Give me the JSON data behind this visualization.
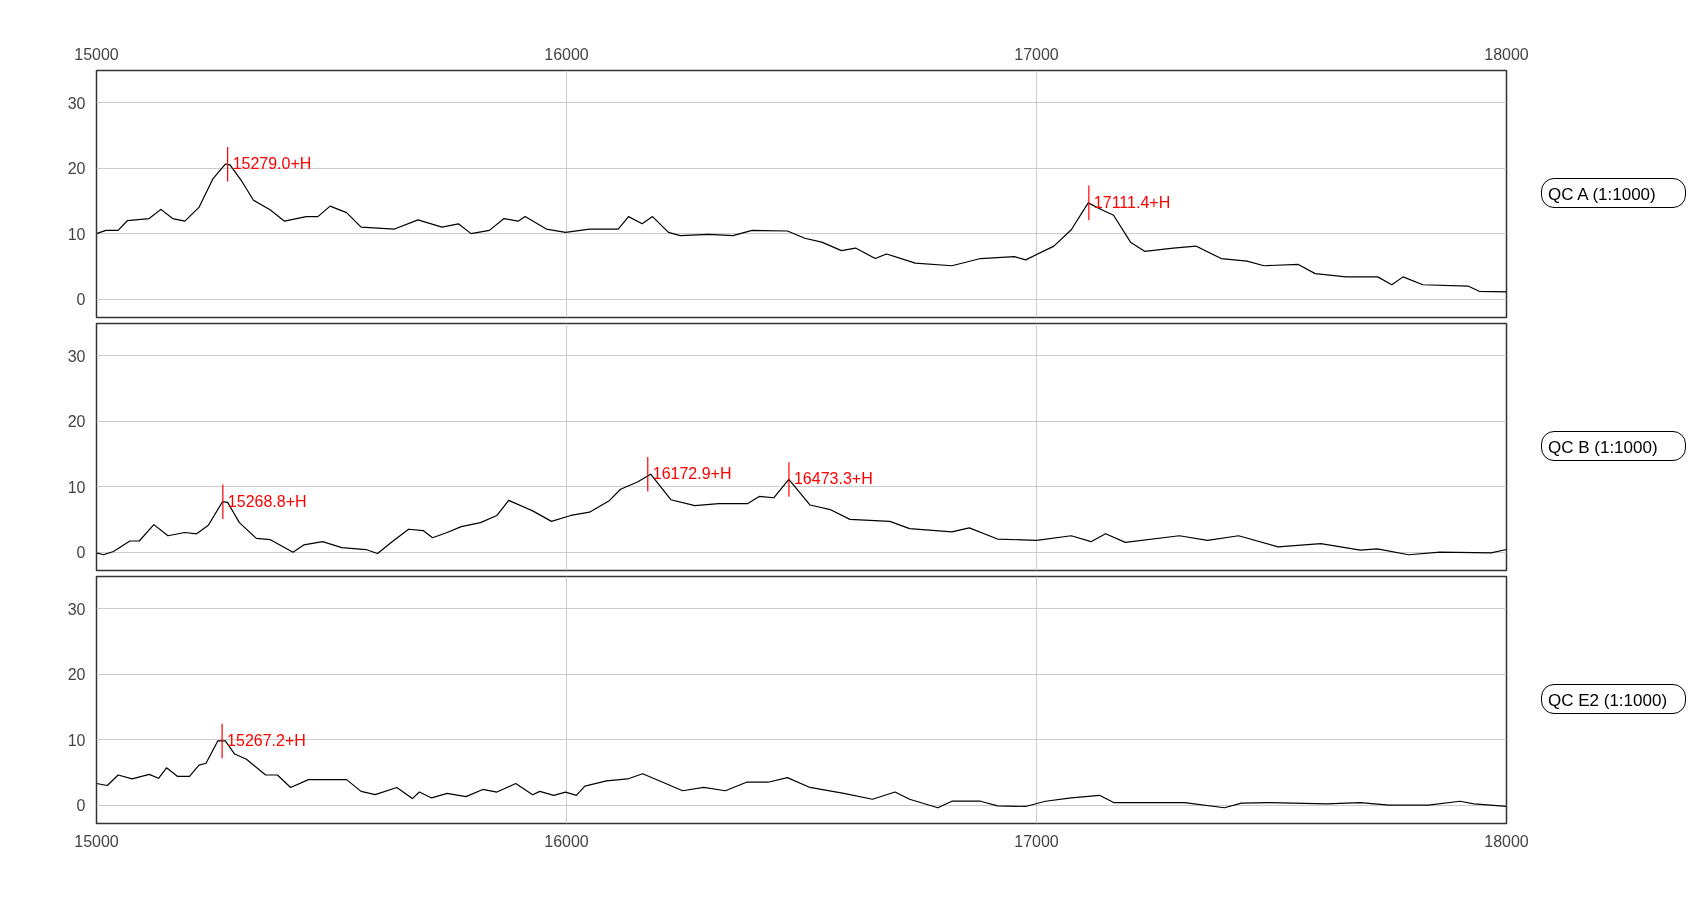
{
  "chart_data": [
    {
      "type": "line",
      "xlim": [
        15000,
        18000
      ],
      "xticks": [
        15000,
        16000,
        17000,
        18000
      ],
      "ylim": [
        -2.8,
        34.9
      ],
      "yticks": [
        0,
        10,
        20,
        30
      ],
      "grid": true,
      "annotations": [
        "QC A (1:1000)",
        {
          "text": "15279.0+H",
          "x": 15279.0,
          "y": 20.6
        },
        {
          "text": "17111.4+H",
          "x": 17111.4,
          "y": 14.7
        }
      ],
      "series": [
        {
          "color": "#000000",
          "x": [
            15000,
            15020,
            15046,
            15066,
            15112,
            15137,
            15162,
            15188,
            15218,
            15248,
            15274,
            15284,
            15309,
            15334,
            15370,
            15400,
            15446,
            15471,
            15497,
            15532,
            15563,
            15634,
            15684,
            15735,
            15770,
            15797,
            15836,
            15867,
            15897,
            15912,
            15957,
            15998,
            16049,
            16110,
            16132,
            16161,
            16183,
            16217,
            16242,
            16303,
            16354,
            16395,
            16470,
            16507,
            16543,
            16585,
            16615,
            16657,
            16681,
            16742,
            16820,
            16881,
            16953,
            16977,
            17037,
            17074,
            17110,
            17140,
            17164,
            17200,
            17230,
            17291,
            17339,
            17393,
            17448,
            17484,
            17557,
            17593,
            17659,
            17726,
            17756,
            17780,
            17822,
            17918,
            17942,
            18000
          ],
          "values": [
            10.0,
            10.5,
            10.5,
            12.0,
            12.3,
            13.7,
            12.3,
            11.9,
            14.0,
            18.4,
            20.6,
            20.5,
            18.0,
            15.1,
            13.6,
            11.9,
            12.6,
            12.6,
            14.2,
            13.2,
            11.0,
            10.7,
            12.1,
            11.0,
            11.5,
            10.0,
            10.5,
            12.3,
            11.9,
            12.6,
            10.7,
            10.2,
            10.7,
            10.7,
            12.6,
            11.5,
            12.6,
            10.2,
            9.7,
            9.9,
            9.7,
            10.5,
            10.4,
            9.3,
            8.7,
            7.4,
            7.8,
            6.2,
            6.9,
            5.5,
            5.1,
            6.2,
            6.5,
            6.0,
            8.1,
            10.6,
            14.7,
            13.6,
            12.8,
            8.7,
            7.3,
            7.8,
            8.1,
            6.2,
            5.8,
            5.1,
            5.3,
            3.9,
            3.4,
            3.4,
            2.2,
            3.4,
            2.2,
            2.0,
            1.2,
            1.1
          ]
        }
      ]
    },
    {
      "type": "line",
      "xlim": [
        15000,
        18000
      ],
      "xticks": [
        15000,
        16000,
        17000,
        18000
      ],
      "ylim": [
        -2.8,
        34.9
      ],
      "yticks": [
        0,
        10,
        20,
        30
      ],
      "grid": true,
      "tick_labels": "y",
      "annotations": [
        "QC B (1:1000)",
        {
          "text": "15268.8+H",
          "x": 15268.8,
          "y": 7.7
        },
        {
          "text": "16172.9+H",
          "x": 16172.9,
          "y": 11.9
        },
        {
          "text": "16473.3+H",
          "x": 16473.3,
          "y": 11.1
        }
      ],
      "series": [
        {
          "color": "#000000",
          "x": [
            15000,
            15015,
            15036,
            15071,
            15091,
            15122,
            15152,
            15188,
            15213,
            15238,
            15268,
            15279,
            15304,
            15340,
            15370,
            15418,
            15441,
            15481,
            15522,
            15573,
            15598,
            15629,
            15664,
            15695,
            15715,
            15746,
            15776,
            15817,
            15852,
            15877,
            15928,
            15968,
            16009,
            16049,
            16090,
            16115,
            16151,
            16179,
            16222,
            16273,
            16324,
            16385,
            16410,
            16441,
            16473,
            16518,
            16561,
            16603,
            16688,
            16730,
            16820,
            16857,
            16917,
            17000,
            17074,
            17116,
            17147,
            17189,
            17304,
            17364,
            17430,
            17514,
            17605,
            17689,
            17725,
            17792,
            17858,
            17967,
            18000
          ],
          "values": [
            -0.1,
            -0.4,
            0.1,
            1.7,
            1.7,
            4.2,
            2.5,
            3.0,
            2.8,
            4.1,
            7.7,
            7.6,
            4.5,
            2.1,
            1.9,
            0.0,
            1.1,
            1.6,
            0.7,
            0.4,
            -0.2,
            1.6,
            3.5,
            3.3,
            2.2,
            3.0,
            3.9,
            4.5,
            5.6,
            7.9,
            6.3,
            4.7,
            5.6,
            6.1,
            7.8,
            9.6,
            10.7,
            11.9,
            8.0,
            7.1,
            7.4,
            7.4,
            8.5,
            8.3,
            11.1,
            7.2,
            6.5,
            5.0,
            4.7,
            3.6,
            3.1,
            3.7,
            2.0,
            1.8,
            2.5,
            1.6,
            2.8,
            1.5,
            2.5,
            1.8,
            2.5,
            0.8,
            1.3,
            0.3,
            0.5,
            -0.4,
            0.0,
            -0.1,
            0.4
          ]
        }
      ]
    },
    {
      "type": "line",
      "xlim": [
        15000,
        18000
      ],
      "xticks": [
        15000,
        16000,
        17000,
        18000
      ],
      "ylim": [
        -2.8,
        34.9
      ],
      "yticks": [
        0,
        10,
        20,
        30
      ],
      "grid": true,
      "annotations": [
        "QC E2 (1:1000)",
        {
          "text": "15267.2+H",
          "x": 15267.2,
          "y": 9.8
        }
      ],
      "series": [
        {
          "color": "#000000",
          "x": [
            15000,
            15023,
            15046,
            15076,
            15112,
            15132,
            15149,
            15172,
            15198,
            15218,
            15233,
            15258,
            15274,
            15294,
            15319,
            15360,
            15385,
            15413,
            15451,
            15532,
            15563,
            15593,
            15639,
            15672,
            15687,
            15713,
            15746,
            15786,
            15822,
            15852,
            15892,
            15928,
            15943,
            15973,
            15998,
            16021,
            16039,
            16085,
            16130,
            16162,
            16211,
            16247,
            16292,
            16338,
            16383,
            16429,
            16470,
            16518,
            16590,
            16651,
            16699,
            16730,
            16790,
            16820,
            16881,
            16917,
            16977,
            17019,
            17074,
            17134,
            17164,
            17243,
            17315,
            17400,
            17436,
            17496,
            17617,
            17689,
            17750,
            17834,
            17901,
            17931,
            18000
          ],
          "values": [
            3.3,
            3.0,
            4.6,
            4.0,
            4.7,
            4.1,
            5.7,
            4.4,
            4.4,
            6.1,
            6.4,
            9.8,
            9.8,
            7.8,
            7.0,
            4.6,
            4.6,
            2.7,
            3.9,
            3.9,
            2.1,
            1.6,
            2.7,
            1.0,
            2.0,
            1.1,
            1.8,
            1.3,
            2.4,
            2.0,
            3.3,
            1.6,
            2.1,
            1.5,
            2.0,
            1.5,
            2.9,
            3.7,
            4.0,
            4.8,
            3.3,
            2.2,
            2.7,
            2.2,
            3.5,
            3.5,
            4.2,
            2.7,
            1.8,
            0.9,
            2.0,
            0.9,
            -0.4,
            0.6,
            0.6,
            -0.1,
            -0.2,
            0.6,
            1.1,
            1.5,
            0.4,
            0.4,
            0.4,
            -0.4,
            0.3,
            0.4,
            0.2,
            0.4,
            0.0,
            0.0,
            0.6,
            0.2,
            -0.2
          ]
        }
      ]
    }
  ]
}
